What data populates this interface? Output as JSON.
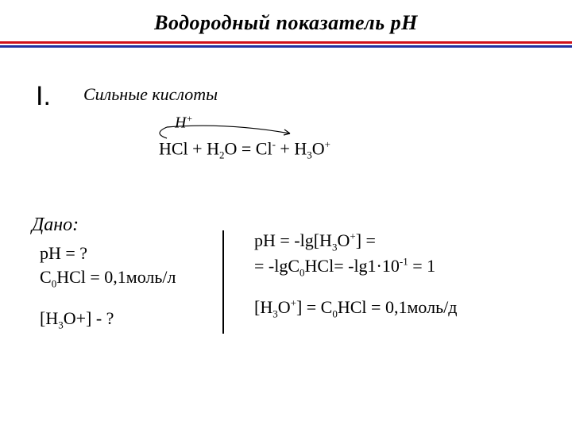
{
  "header": {
    "title": "Водородный показатель рН",
    "rule_colors": {
      "top": "#d01018",
      "mid": "#ffffff",
      "bottom": "#2030a0"
    }
  },
  "section": {
    "mark": "I.",
    "subtitle": "Сильные кислоты"
  },
  "arrow_annotation": {
    "label_html": "H<sup>+</sup>",
    "stroke": "#000000"
  },
  "equation": {
    "html": "HCl + H<sub>2</sub>O = Cl<sup>-</sup> + H<sub>3</sub>O<sup>+</sup>"
  },
  "given": {
    "label": "Дано:",
    "lines_html": [
      "pH = ?",
      "C<sub>0</sub>HCl = 0,1моль/л",
      "",
      "[H<sub>3</sub>O+] - ?"
    ]
  },
  "solution": {
    "lines_html": [
      "pH = -lg[H<sub>3</sub>O<sup>+</sup>] =",
      "= -lgC<sub>0</sub>HCl= -lg1·10<sup>-1</sup> = 1",
      "",
      "[H<sub>3</sub>O<sup>+</sup>] = C<sub>0</sub>HCl = 0,1моль/д"
    ]
  },
  "style": {
    "background": "#ffffff",
    "text_color": "#000000",
    "title_fontsize": 26,
    "body_fontsize": 22,
    "font_family": "Times New Roman"
  }
}
